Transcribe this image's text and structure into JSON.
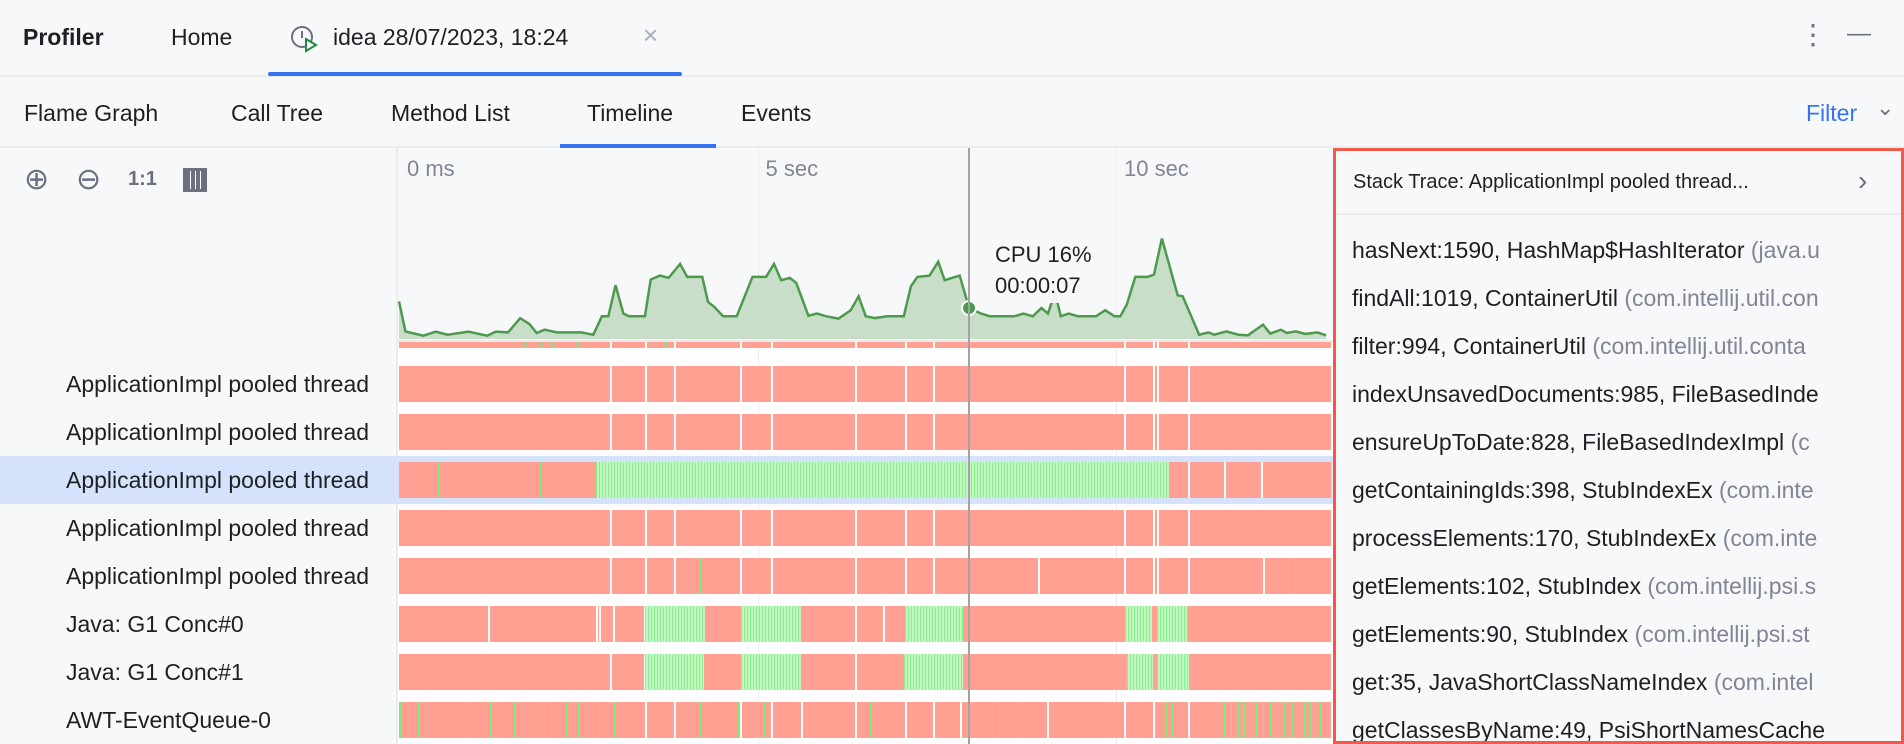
{
  "topbar": {
    "app_title": "Profiler",
    "home_tab": "Home",
    "session_tab": "idea 28/07/2023, 18:24",
    "close_glyph": "×",
    "more_glyph": "⋮",
    "minimize_glyph": "—"
  },
  "view_tabs": [
    {
      "label": "Flame Graph"
    },
    {
      "label": "Call Tree"
    },
    {
      "label": "Method List"
    },
    {
      "label": "Timeline",
      "active": true
    },
    {
      "label": "Events"
    }
  ],
  "filter": {
    "label": "Filter",
    "chevron": "⌄"
  },
  "zoom_toolbar": {
    "zoom_in": "⊕",
    "zoom_out": "⊖",
    "reset": "1:1"
  },
  "colors": {
    "accent": "#3574f0",
    "waiting": "#ffa092",
    "running": "#86f28a",
    "cpu_line": "#4d9a4d",
    "cpu_fill": "#c9dec9",
    "highlight_border": "#f15a4a",
    "selected_row": "#d4e2fb"
  },
  "chart_data": {
    "type": "area",
    "x_ticks": [
      "0 ms",
      "5 sec",
      "10 sec"
    ],
    "x_tick_values": [
      0,
      5,
      10
    ],
    "x_unit": "sec",
    "xlim": [
      0,
      13
    ],
    "cursor_time": 7.95,
    "tooltip": {
      "cpu": "CPU 16%",
      "time": "00:00:07"
    },
    "cpu_series": [
      [
        0,
        19.4
      ],
      [
        0.09,
        3.9
      ],
      [
        0.34,
        1.7
      ],
      [
        0.51,
        3.8
      ],
      [
        0.68,
        2.2
      ],
      [
        0.97,
        3.8
      ],
      [
        1.23,
        1.7
      ],
      [
        1.35,
        3.8
      ],
      [
        1.52,
        3.4
      ],
      [
        1.69,
        10.7
      ],
      [
        1.82,
        7.7
      ],
      [
        1.92,
        3.1
      ],
      [
        2.03,
        4.8
      ],
      [
        2.2,
        3.4
      ],
      [
        2.54,
        3.4
      ],
      [
        2.71,
        2.2
      ],
      [
        2.83,
        11.7
      ],
      [
        2.92,
        11.7
      ],
      [
        3.02,
        27.7
      ],
      [
        3.13,
        13.1
      ],
      [
        3.21,
        11.7
      ],
      [
        3.43,
        11.7
      ],
      [
        3.51,
        30.6
      ],
      [
        3.64,
        32.7
      ],
      [
        3.76,
        31.5
      ],
      [
        3.92,
        38.7
      ],
      [
        4.02,
        32
      ],
      [
        4.23,
        32
      ],
      [
        4.31,
        19.1
      ],
      [
        4.4,
        16.5
      ],
      [
        4.52,
        11.7
      ],
      [
        4.71,
        11.7
      ],
      [
        4.93,
        32
      ],
      [
        5.12,
        32
      ],
      [
        5.23,
        38.7
      ],
      [
        5.33,
        30.3
      ],
      [
        5.45,
        31.5
      ],
      [
        5.54,
        28.9
      ],
      [
        5.71,
        12
      ],
      [
        5.83,
        13.1
      ],
      [
        5.96,
        11.7
      ],
      [
        6.13,
        10.5
      ],
      [
        6.3,
        14.8
      ],
      [
        6.41,
        22
      ],
      [
        6.51,
        11.7
      ],
      [
        6.64,
        10.8
      ],
      [
        6.81,
        11.7
      ],
      [
        7.04,
        11.7
      ],
      [
        7.14,
        27.2
      ],
      [
        7.23,
        32
      ],
      [
        7.4,
        32.7
      ],
      [
        7.52,
        39.8
      ],
      [
        7.61,
        30.3
      ],
      [
        7.82,
        32.7
      ],
      [
        7.95,
        16
      ],
      [
        8.12,
        13.1
      ],
      [
        8.24,
        11.7
      ],
      [
        8.58,
        11.7
      ],
      [
        8.71,
        13.1
      ],
      [
        8.84,
        11.7
      ],
      [
        8.96,
        16
      ],
      [
        9.05,
        13.1
      ],
      [
        9.15,
        23.8
      ],
      [
        9.23,
        11.7
      ],
      [
        9.34,
        13.1
      ],
      [
        9.47,
        11.7
      ],
      [
        9.72,
        11.7
      ],
      [
        9.85,
        14.8
      ],
      [
        9.98,
        11.7
      ],
      [
        10.06,
        11.7
      ],
      [
        10.15,
        17.7
      ],
      [
        10.27,
        32
      ],
      [
        10.44,
        32
      ],
      [
        10.53,
        33.2
      ],
      [
        10.64,
        51.8
      ],
      [
        10.86,
        22.5
      ],
      [
        10.93,
        22
      ],
      [
        11.16,
        2.2
      ],
      [
        11.29,
        3.4
      ],
      [
        11.37,
        2.2
      ],
      [
        11.54,
        3.9
      ],
      [
        11.71,
        2.2
      ],
      [
        11.84,
        1.9
      ],
      [
        12.05,
        7.4
      ],
      [
        12.15,
        2.8
      ],
      [
        12.3,
        4.8
      ],
      [
        12.38,
        3.1
      ],
      [
        12.51,
        3.9
      ],
      [
        12.64,
        2.6
      ],
      [
        12.81,
        3.4
      ],
      [
        12.93,
        1.9
      ]
    ]
  },
  "threads": [
    {
      "label": "",
      "partial": true,
      "segments": [
        [
          0,
          13,
          "waiting"
        ]
      ],
      "gaps": [
        2.96,
        3.44,
        3.85,
        4.77,
        5.2,
        6.37,
        7.07,
        7.46,
        10.12,
        10.53,
        10.59,
        11.02
      ],
      "ticks": [
        1.75,
        1.97,
        2.13,
        2.5,
        2.7,
        3.1,
        3.72
      ]
    },
    {
      "label": "ApplicationImpl pooled thread",
      "segments": [
        [
          0,
          13,
          "waiting"
        ]
      ],
      "gaps": [
        2.96,
        3.44,
        3.85,
        4.77,
        5.2,
        6.37,
        7.07,
        7.46,
        10.12,
        10.53,
        10.59,
        11.02
      ],
      "ticks": []
    },
    {
      "label": "ApplicationImpl pooled thread",
      "segments": [
        [
          0,
          13,
          "waiting"
        ]
      ],
      "gaps": [
        2.96,
        3.44,
        3.85,
        4.77,
        5.2,
        6.37,
        7.07,
        7.46,
        10.12,
        10.53,
        10.59,
        11.02
      ],
      "ticks": []
    },
    {
      "label": "ApplicationImpl pooled thread",
      "selected": true,
      "segments": [
        [
          0,
          2.75,
          "waiting"
        ],
        [
          2.75,
          10.74,
          "running"
        ],
        [
          10.74,
          13,
          "waiting"
        ]
      ],
      "gaps": [
        11.02,
        11.52,
        12.04
      ],
      "ticks": [
        0.55,
        0.72,
        1.97
      ]
    },
    {
      "label": "ApplicationImpl pooled thread",
      "segments": [
        [
          0,
          13,
          "waiting"
        ]
      ],
      "gaps": [
        2.96,
        3.44,
        3.85,
        4.77,
        5.2,
        6.37,
        7.07,
        7.46,
        10.12,
        10.53,
        10.59,
        11.02
      ],
      "ticks": []
    },
    {
      "label": "ApplicationImpl pooled thread",
      "segments": [
        [
          0,
          13,
          "waiting"
        ]
      ],
      "gaps": [
        2.96,
        3.44,
        3.85,
        4.77,
        5.2,
        6.37,
        7.07,
        7.46,
        8.93,
        10.12,
        10.53,
        10.59,
        11.02,
        12.07
      ],
      "ticks": [
        4.2,
        12.5
      ]
    },
    {
      "label": "Java: G1 Conc#0",
      "segments": [
        [
          0,
          3.42,
          "waiting"
        ],
        [
          3.43,
          4.27,
          "running"
        ],
        [
          4.27,
          4.77,
          "waiting"
        ],
        [
          4.77,
          5.6,
          "running"
        ],
        [
          5.6,
          7.06,
          "waiting"
        ],
        [
          7.06,
          7.87,
          "running"
        ],
        [
          7.87,
          10.12,
          "waiting"
        ],
        [
          10.12,
          10.5,
          "running"
        ],
        [
          10.5,
          10.57,
          "waiting"
        ],
        [
          10.57,
          11.0,
          "running"
        ],
        [
          11.0,
          13,
          "waiting"
        ]
      ],
      "gaps": [
        1.26,
        2.76,
        2.8,
        3.0,
        6.37,
        6.77
      ],
      "ticks": []
    },
    {
      "label": "Java: G1 Conc#1",
      "segments": [
        [
          0,
          3.42,
          "waiting"
        ],
        [
          3.43,
          4.25,
          "running"
        ],
        [
          4.25,
          4.77,
          "waiting"
        ],
        [
          4.77,
          5.6,
          "running"
        ],
        [
          5.6,
          7.05,
          "waiting"
        ],
        [
          7.05,
          7.87,
          "running"
        ],
        [
          7.87,
          10.16,
          "waiting"
        ],
        [
          10.16,
          10.52,
          "running"
        ],
        [
          10.52,
          10.57,
          "waiting"
        ],
        [
          10.57,
          11.02,
          "running"
        ],
        [
          11.02,
          13,
          "waiting"
        ]
      ],
      "gaps": [
        2.96,
        6.37
      ],
      "ticks": []
    },
    {
      "label": "AWT-EventQueue-0",
      "segments": [
        [
          0,
          13,
          "waiting"
        ]
      ],
      "gaps": [
        3.44,
        3.85,
        4.77,
        5.2,
        5.62,
        6.37,
        7.07,
        7.46,
        7.84,
        9.05,
        10.12,
        10.53,
        11.02
      ],
      "ticks": [
        0.01,
        0.27,
        0.42,
        0.95,
        1.27,
        1.4,
        1.61,
        1.82,
        1.95,
        2.12,
        2.33,
        2.5,
        2.79,
        3.0,
        4.2,
        4.33,
        4.73,
        5.09,
        5.52,
        6.38,
        6.57,
        7.56,
        8.0,
        8.37,
        8.62,
        9.87,
        10.32,
        10.7,
        10.78,
        11.02,
        11.5,
        11.6,
        11.7,
        11.78,
        11.85,
        11.95,
        12.05,
        12.15,
        12.25,
        12.35,
        12.45,
        12.55,
        12.62,
        12.7,
        12.78,
        12.85
      ]
    }
  ],
  "stack_trace": {
    "title": "Stack Trace: ApplicationImpl pooled thread...",
    "expand_glyph": "›",
    "frames": [
      {
        "method": "hasNext:1590, HashMap$HashIterator",
        "pkg": "(java.u"
      },
      {
        "method": "findAll:1019, ContainerUtil",
        "pkg": "(com.intellij.util.con"
      },
      {
        "method": "filter:994, ContainerUtil",
        "pkg": "(com.intellij.util.conta"
      },
      {
        "method": "indexUnsavedDocuments:985, FileBasedInde",
        "pkg": ""
      },
      {
        "method": "ensureUpToDate:828, FileBasedIndexImpl",
        "pkg": "(c"
      },
      {
        "method": "getContainingIds:398, StubIndexEx",
        "pkg": "(com.inte"
      },
      {
        "method": "processElements:170, StubIndexEx",
        "pkg": "(com.inte"
      },
      {
        "method": "getElements:102, StubIndex",
        "pkg": "(com.intellij.psi.s"
      },
      {
        "method": "getElements:90, StubIndex",
        "pkg": "(com.intellij.psi.st"
      },
      {
        "method": "get:35, JavaShortClassNameIndex",
        "pkg": "(com.intel"
      },
      {
        "method": "getClassesByName:49, PsiShortNamesCache",
        "pkg": ""
      }
    ]
  }
}
